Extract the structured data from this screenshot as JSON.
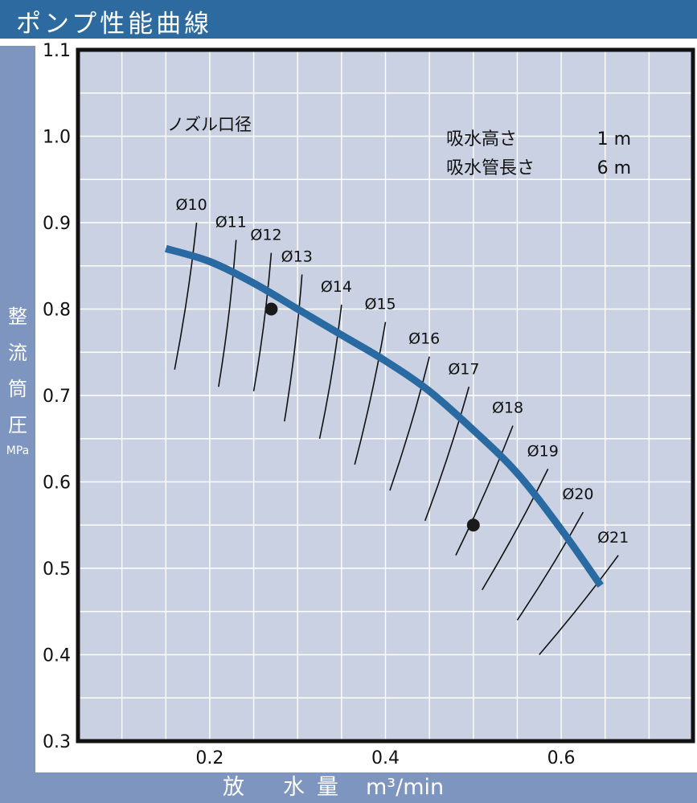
{
  "title": "ポンプ性能曲線",
  "y_axis_title_chars": [
    "整",
    "流",
    "筒",
    "圧"
  ],
  "y_axis_unit": "MPa",
  "x_axis_title_chars": [
    "放",
    "水",
    "量"
  ],
  "x_axis_unit": "m³/min",
  "nozzle_label": "ノズル口径",
  "conditions": [
    {
      "label": "吸水高さ",
      "value": "1 m"
    },
    {
      "label": "吸水管長さ",
      "value": "6 m"
    }
  ],
  "colors": {
    "title_bar": "#2d6a9f",
    "axis_band": "#7d95bf",
    "plot_background": "#c9d1e3",
    "grid": "#ffffff",
    "curve": "#2a6aa3",
    "points": "#1a1a1a"
  },
  "chart_data": {
    "type": "line",
    "title": "ポンプ性能曲線",
    "xlabel": "放 水 量 m³/min",
    "ylabel": "整流筒圧 MPa",
    "xlim": [
      0.05,
      0.75
    ],
    "ylim": [
      0.3,
      1.1
    ],
    "x_ticks": [
      "0.2",
      "0.4",
      "0.6"
    ],
    "y_ticks": [
      "0.3",
      "0.4",
      "0.5",
      "0.6",
      "0.7",
      "0.8",
      "0.9",
      "1.0",
      "1.1"
    ],
    "grid": true,
    "pump_curve": {
      "x": [
        0.15,
        0.2,
        0.25,
        0.3,
        0.35,
        0.4,
        0.45,
        0.5,
        0.55,
        0.6,
        0.645
      ],
      "y": [
        0.87,
        0.855,
        0.83,
        0.8,
        0.77,
        0.74,
        0.705,
        0.66,
        0.61,
        0.545,
        0.48
      ]
    },
    "nozzle_lines": [
      {
        "label": "Ø10",
        "x1": 0.16,
        "y1": 0.73,
        "x2": 0.185,
        "y2": 0.9
      },
      {
        "label": "Ø11",
        "x1": 0.21,
        "y1": 0.71,
        "x2": 0.23,
        "y2": 0.88
      },
      {
        "label": "Ø12",
        "x1": 0.25,
        "y1": 0.705,
        "x2": 0.27,
        "y2": 0.865
      },
      {
        "label": "Ø13",
        "x1": 0.285,
        "y1": 0.67,
        "x2": 0.305,
        "y2": 0.84
      },
      {
        "label": "Ø14",
        "x1": 0.325,
        "y1": 0.65,
        "x2": 0.35,
        "y2": 0.805
      },
      {
        "label": "Ø15",
        "x1": 0.365,
        "y1": 0.62,
        "x2": 0.4,
        "y2": 0.785
      },
      {
        "label": "Ø16",
        "x1": 0.405,
        "y1": 0.59,
        "x2": 0.45,
        "y2": 0.745
      },
      {
        "label": "Ø17",
        "x1": 0.445,
        "y1": 0.555,
        "x2": 0.495,
        "y2": 0.71
      },
      {
        "label": "Ø18",
        "x1": 0.48,
        "y1": 0.515,
        "x2": 0.545,
        "y2": 0.665
      },
      {
        "label": "Ø19",
        "x1": 0.51,
        "y1": 0.475,
        "x2": 0.585,
        "y2": 0.615
      },
      {
        "label": "Ø20",
        "x1": 0.55,
        "y1": 0.44,
        "x2": 0.625,
        "y2": 0.565
      },
      {
        "label": "Ø21",
        "x1": 0.575,
        "y1": 0.4,
        "x2": 0.665,
        "y2": 0.515
      }
    ],
    "points": [
      {
        "x": 0.27,
        "y": 0.8
      },
      {
        "x": 0.5,
        "y": 0.55
      }
    ]
  }
}
